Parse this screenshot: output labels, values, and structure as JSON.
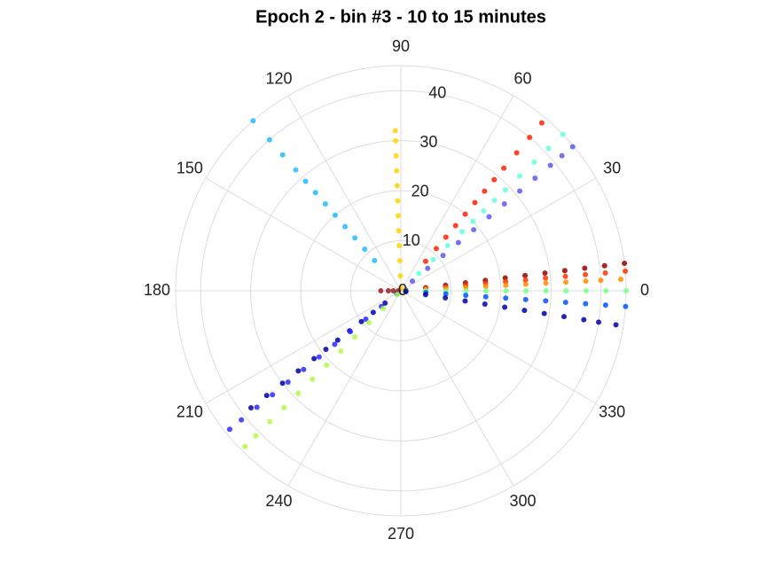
{
  "chart_data": {
    "type": "scatter",
    "polar": true,
    "title": "Epoch 2 - bin #3 - 10 to 15 minutes",
    "rlim": [
      0,
      45
    ],
    "rticks": [
      0,
      10,
      20,
      30,
      40
    ],
    "thetaticks": [
      0,
      30,
      60,
      90,
      120,
      150,
      180,
      210,
      240,
      270,
      300,
      330
    ],
    "grid": true,
    "series": [
      {
        "color": "#ffd400",
        "theta": [
          92,
          92,
          92,
          92,
          92,
          92,
          92,
          92,
          92,
          92,
          92,
          92
        ],
        "r": [
          0.5,
          3,
          6,
          9,
          12,
          15,
          18,
          21,
          24,
          27,
          30,
          32
        ]
      },
      {
        "color": "#22bbff",
        "theta": [
          131,
          131,
          131,
          131,
          131,
          131,
          131,
          131,
          131,
          131,
          131,
          131
        ],
        "r": [
          8,
          11,
          14,
          17,
          20,
          23,
          26,
          29,
          32,
          36,
          40,
          45
        ]
      },
      {
        "color": "#ff2200",
        "theta": [
          50,
          50,
          50,
          50,
          50,
          50,
          50,
          50,
          50,
          50,
          50,
          50
        ],
        "r": [
          7.7,
          11,
          14,
          17,
          20,
          23,
          26,
          29,
          32,
          36,
          40,
          43.8
        ]
      },
      {
        "color": "#66ffdd",
        "theta": [
          44,
          44,
          44,
          44,
          44,
          44,
          44,
          44,
          44,
          44,
          44,
          44
        ],
        "r": [
          5,
          9,
          13,
          17,
          20,
          23,
          26,
          29,
          33,
          37,
          41,
          45
        ]
      },
      {
        "color": "#5a5aee",
        "theta": [
          40,
          40,
          40,
          40,
          40,
          40,
          40,
          40,
          40,
          40,
          40,
          40
        ],
        "r": [
          3,
          7,
          11,
          15,
          19,
          23,
          27,
          31,
          35,
          39,
          42,
          44.8
        ]
      },
      {
        "color": "#990000",
        "theta": [
          7,
          7,
          7,
          7,
          7,
          7,
          7,
          7,
          7,
          7,
          7,
          7
        ],
        "r": [
          1,
          5,
          9,
          13,
          17,
          21,
          25,
          29,
          33,
          37,
          41,
          45
        ]
      },
      {
        "color": "#ff3300",
        "theta": [
          5,
          5,
          5,
          5,
          5,
          5,
          5,
          5,
          5,
          5,
          5,
          5
        ],
        "r": [
          1,
          5,
          9,
          13,
          17,
          21,
          25,
          29,
          33,
          37,
          41,
          45
        ]
      },
      {
        "color": "#ff8c00",
        "theta": [
          3,
          3,
          3,
          3,
          3,
          3,
          3,
          3,
          3,
          3,
          3,
          3
        ],
        "r": [
          1,
          5,
          9,
          13,
          17,
          21,
          25,
          29,
          33,
          37,
          40,
          44
        ]
      },
      {
        "color": "#77ff88",
        "theta": [
          0,
          0,
          0,
          0,
          0,
          0,
          0,
          0,
          0,
          0,
          0,
          0
        ],
        "r": [
          1,
          5,
          9,
          13,
          17,
          21,
          25,
          29,
          33,
          37,
          41,
          45
        ]
      },
      {
        "color": "#0055ff",
        "theta": [
          356,
          356,
          356,
          356,
          356,
          356,
          356,
          356,
          356,
          356,
          356,
          356
        ],
        "r": [
          1,
          5,
          9,
          13,
          17,
          21,
          25,
          29,
          33,
          37,
          41,
          45
        ]
      },
      {
        "color": "#0000aa",
        "theta": [
          351,
          351,
          351,
          351,
          351,
          351,
          351,
          351,
          351,
          351,
          351,
          351
        ],
        "r": [
          1,
          5,
          9,
          13,
          17,
          21,
          25,
          29,
          33,
          37,
          40,
          43.5
        ]
      },
      {
        "color": "#992222",
        "theta": [
          180,
          180,
          180,
          180
        ],
        "r": [
          0.5,
          1.5,
          2.5,
          4
        ]
      },
      {
        "color": "#0000aa",
        "theta": [
          218,
          218,
          218,
          218,
          218,
          218,
          218,
          218,
          218,
          218,
          218,
          218
        ],
        "r": [
          1,
          4,
          7,
          10,
          13,
          16,
          19,
          22,
          26,
          30,
          34,
          38
        ]
      },
      {
        "color": "#2a2aff",
        "theta": [
          219,
          219,
          219,
          219,
          219,
          219,
          219,
          219,
          219,
          219,
          219,
          219
        ],
        "r": [
          1,
          5,
          9,
          13,
          17,
          21,
          25,
          29,
          33,
          37,
          41,
          44
        ]
      },
      {
        "color": "#aaff44",
        "theta": [
          225,
          225,
          225,
          225,
          225,
          225,
          225,
          225,
          225,
          225,
          225,
          225
        ],
        "r": [
          1,
          5,
          9,
          13,
          17,
          21,
          25,
          29,
          33,
          37,
          41,
          44
        ]
      }
    ]
  }
}
